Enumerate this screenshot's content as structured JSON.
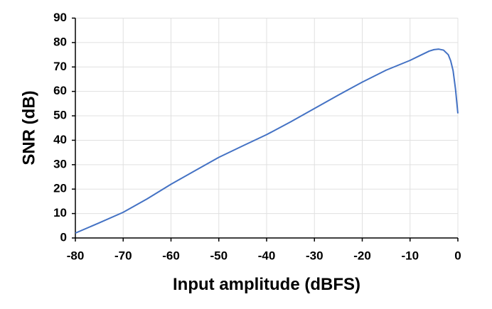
{
  "chart_data": {
    "type": "line",
    "x_label": "Input amplitude (dBFS)",
    "y_label": "SNR (dB)",
    "x": [
      -80,
      -75,
      -70,
      -65,
      -60,
      -55,
      -50,
      -45,
      -40,
      -35,
      -30,
      -25,
      -20,
      -15,
      -10,
      -8,
      -6,
      -5,
      -4,
      -3,
      -2,
      -1.5,
      -1,
      -0.5,
      0
    ],
    "series": [
      {
        "name": "SNR",
        "color": "#4472c4",
        "values": [
          2,
          6.2,
          10.5,
          16,
          22,
          27.5,
          33,
          37.7,
          42.3,
          47.5,
          53,
          58.5,
          63.8,
          68.7,
          72.7,
          74.6,
          76.5,
          77.1,
          77.3,
          76.9,
          75,
          72.5,
          68.5,
          61,
          51
        ]
      }
    ],
    "xlim": [
      -80,
      0
    ],
    "xticks": [
      -80,
      -70,
      -60,
      -50,
      -40,
      -30,
      -20,
      -10,
      0
    ],
    "ylim": [
      0,
      90
    ],
    "yticks": [
      0,
      10,
      20,
      30,
      40,
      50,
      60,
      70,
      80,
      90
    ],
    "grid": true
  }
}
